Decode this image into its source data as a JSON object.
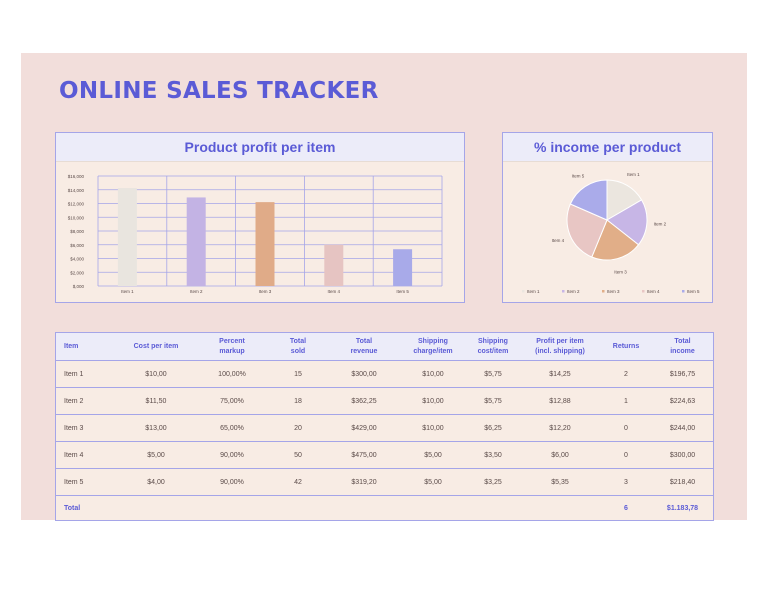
{
  "title": "ONLINE SALES TRACKER",
  "colors": {
    "accent": "#5b5bd6",
    "border": "#a5a5e8",
    "background": "#f2dedb"
  },
  "bar_panel": {
    "title": "Product profit per item"
  },
  "pie_panel": {
    "title": "% income per product"
  },
  "chart_data": [
    {
      "type": "bar",
      "title": "Product profit per item",
      "categories": [
        "Item 1",
        "Item 2",
        "Item 3",
        "Item 4",
        "Item 5"
      ],
      "values": [
        14.25,
        12.88,
        12.2,
        6.0,
        5.35
      ],
      "colors": [
        "#e9e5df",
        "#c3b3e4",
        "#e0ab88",
        "#e6c4c2",
        "#a8aae9"
      ],
      "ylim": [
        0,
        16
      ],
      "yticks": [
        "$16,000",
        "$14,000",
        "$12,000",
        "$10,000",
        "$8,000",
        "$6,000",
        "$4,000",
        "$2,000",
        "$,000"
      ],
      "grid": true
    },
    {
      "type": "pie",
      "title": "% income per product",
      "categories": [
        "Item 1",
        "Item 2",
        "Item 3",
        "Item 4",
        "Item 5"
      ],
      "values": [
        196.75,
        224.63,
        244.0,
        300.0,
        218.4
      ],
      "colors": [
        "#ebe6df",
        "#c7b6e6",
        "#e1ae88",
        "#e8c6c4",
        "#aaabea"
      ],
      "legend": "bottom"
    }
  ],
  "table": {
    "headers": [
      "Item",
      "Cost per item",
      "Percent\nmarkup",
      "Total\nsold",
      "Total\nrevenue",
      "Shipping\ncharge/item",
      "Shipping\ncost/item",
      "Profit per item\n(incl. shipping)",
      "Returns",
      "Total\nincome"
    ],
    "rows": [
      [
        "Item 1",
        "$10,00",
        "100,00%",
        "15",
        "$300,00",
        "$10,00",
        "$5,75",
        "$14,25",
        "2",
        "$196,75"
      ],
      [
        "Item 2",
        "$11,50",
        "75,00%",
        "18",
        "$362,25",
        "$10,00",
        "$5,75",
        "$12,88",
        "1",
        "$224,63"
      ],
      [
        "Item 3",
        "$13,00",
        "65,00%",
        "20",
        "$429,00",
        "$10,00",
        "$6,25",
        "$12,20",
        "0",
        "$244,00"
      ],
      [
        "Item 4",
        "$5,00",
        "90,00%",
        "50",
        "$475,00",
        "$5,00",
        "$3,50",
        "$6,00",
        "0",
        "$300,00"
      ],
      [
        "Item 5",
        "$4,00",
        "90,00%",
        "42",
        "$319,20",
        "$5,00",
        "$3,25",
        "$5,35",
        "3",
        "$218,40"
      ]
    ],
    "total": [
      "Total",
      "",
      "",
      "",
      "",
      "",
      "",
      "",
      "6",
      "$1.183,78"
    ]
  }
}
